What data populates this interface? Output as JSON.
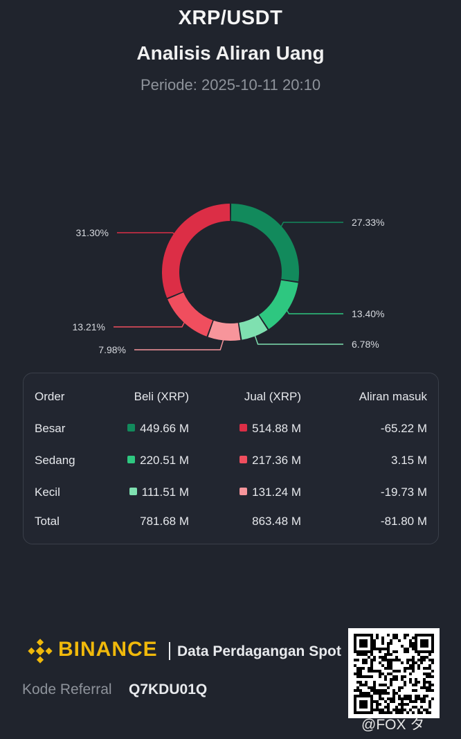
{
  "header": {
    "pair": "XRP/USDT",
    "subtitle": "Analisis Aliran Uang",
    "period": "Periode: 2025-10-11 20:10"
  },
  "colors": {
    "buy_large": "#128a5c",
    "buy_medium": "#2ec780",
    "buy_small": "#7fe0b0",
    "sell_large": "#dc2e46",
    "sell_medium": "#f04e5e",
    "sell_small": "#f7959b",
    "binance_yellow": "#f0b90b"
  },
  "chart_data": {
    "type": "pie",
    "donut": true,
    "slices": [
      {
        "label": "Beli Besar",
        "value": 27.33,
        "text": "27.33%",
        "color": "#128a5c"
      },
      {
        "label": "Beli Sedang",
        "value": 13.4,
        "text": "13.40%",
        "color": "#2ec780"
      },
      {
        "label": "Beli Kecil",
        "value": 6.78,
        "text": "6.78%",
        "color": "#7fe0b0"
      },
      {
        "label": "Jual Kecil",
        "value": 7.98,
        "text": "7.98%",
        "color": "#f7959b"
      },
      {
        "label": "Jual Sedang",
        "value": 13.21,
        "text": "13.21%",
        "color": "#f04e5e"
      },
      {
        "label": "Jual Besar",
        "value": 31.3,
        "text": "31.30%",
        "color": "#dc2e46"
      }
    ]
  },
  "table": {
    "headers": [
      "Order",
      "Beli (XRP)",
      "Jual (XRP)",
      "Aliran masuk"
    ],
    "rows": [
      {
        "label": "Besar",
        "buy": "449.66 M",
        "sell": "514.88 M",
        "net": "-65.22 M",
        "buy_color": "#128a5c",
        "sell_color": "#dc2e46"
      },
      {
        "label": "Sedang",
        "buy": "220.51 M",
        "sell": "217.36 M",
        "net": "3.15 M",
        "buy_color": "#2ec780",
        "sell_color": "#f04e5e"
      },
      {
        "label": "Kecil",
        "buy": "111.51 M",
        "sell": "131.24 M",
        "net": "-19.73 M",
        "buy_color": "#7fe0b0",
        "sell_color": "#f7959b"
      }
    ],
    "total": {
      "label": "Total",
      "buy": "781.68 M",
      "sell": "863.48 M",
      "net": "-81.80 M"
    }
  },
  "footer": {
    "brand": "BINANCE",
    "tagline": "Data Perdagangan Spot",
    "referral_label": "Kode Referral",
    "referral_code": "Q7KDU01Q",
    "watermark": "@FOX タ"
  }
}
